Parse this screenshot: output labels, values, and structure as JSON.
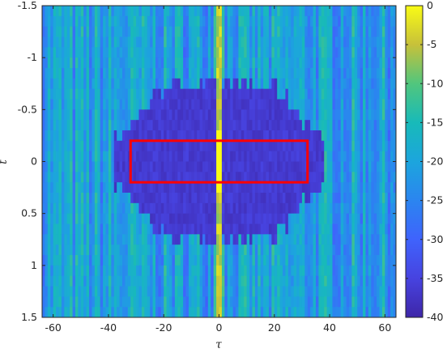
{
  "chart_data": {
    "type": "heatmap",
    "xlabel": "τ",
    "ylabel": "t",
    "xlim": [
      -64,
      64
    ],
    "ylim": [
      -1.5,
      1.5
    ],
    "y_reversed": true,
    "x_ticks": [
      -60,
      -40,
      -20,
      0,
      20,
      40,
      60
    ],
    "x_tick_labels": [
      "-60",
      "-40",
      "-20",
      "0",
      "20",
      "40",
      "60"
    ],
    "y_ticks": [
      -1.5,
      -1,
      -0.5,
      0,
      0.5,
      1,
      1.5
    ],
    "y_tick_labels": [
      "-1.5",
      "-1",
      "-0.5",
      "0",
      "0.5",
      "1",
      "1.5"
    ],
    "colorbar": {
      "colormap": "parula",
      "range": [
        -40,
        0
      ],
      "ticks": [
        0,
        -5,
        -10,
        -15,
        -20,
        -25,
        -30,
        -35,
        -40
      ],
      "tick_labels": [
        "0",
        "-5",
        "-10",
        "-15",
        "-20",
        "-25",
        "-30",
        "-35",
        "-40"
      ]
    },
    "highlight_region": {
      "x_range": [
        -32,
        32
      ],
      "y_range": [
        -0.2,
        0.2
      ],
      "color": "#ff0000"
    },
    "ridge": {
      "x": 0,
      "value_db": 0
    },
    "description_of_field": "Vertical striped noise pattern mostly between -30 and -15 dB; low values (≈ -38 dB) inside |t| < 0.6 for |τ| < 35; bright ridge at τ = 0."
  }
}
